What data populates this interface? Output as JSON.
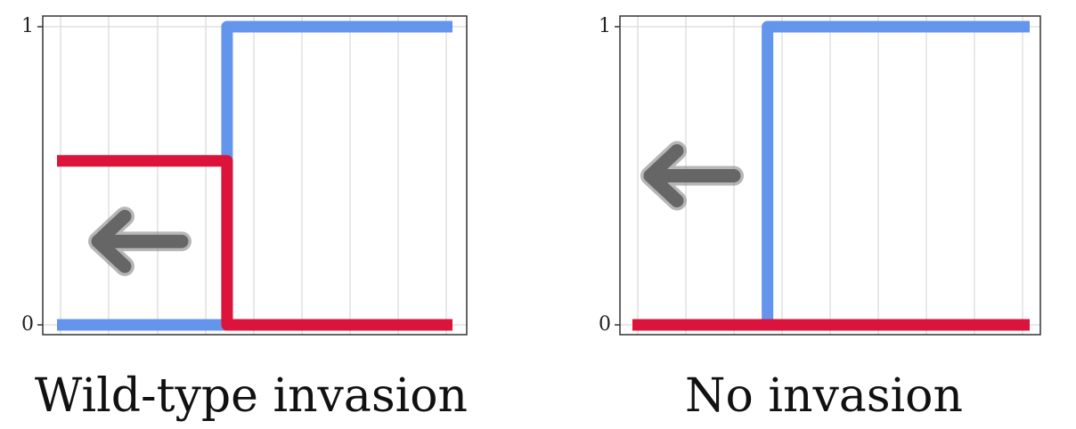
{
  "chart_data": [
    {
      "type": "line",
      "title": "Wild-type invasion",
      "xlabel": "",
      "ylabel": "",
      "yticks": [
        "0",
        "1"
      ],
      "ylim": [
        0,
        1
      ],
      "xlim": [
        0,
        1
      ],
      "grid": true,
      "arrow": {
        "direction": "left",
        "color": "#666666",
        "y": 0.28
      },
      "series": [
        {
          "color": "#6495ED",
          "x": [
            0,
            0.43,
            0.43,
            1
          ],
          "y": [
            0,
            0,
            1,
            1
          ]
        },
        {
          "color": "#DC143C",
          "x": [
            0,
            0.43,
            0.43,
            1
          ],
          "y": [
            0.55,
            0.55,
            0,
            0
          ]
        }
      ]
    },
    {
      "type": "line",
      "title": "No invasion",
      "xlabel": "",
      "ylabel": "",
      "yticks": [
        "0",
        "1"
      ],
      "ylim": [
        0,
        1
      ],
      "xlim": [
        0,
        1
      ],
      "grid": true,
      "arrow": {
        "direction": "left",
        "color": "#666666",
        "y": 0.5
      },
      "series": [
        {
          "color": "#6495ED",
          "x": [
            0.34,
            0.34,
            1
          ],
          "y": [
            0,
            1,
            1
          ]
        },
        {
          "color": "#DC143C",
          "x": [
            0,
            1
          ],
          "y": [
            0,
            0
          ]
        }
      ]
    }
  ]
}
